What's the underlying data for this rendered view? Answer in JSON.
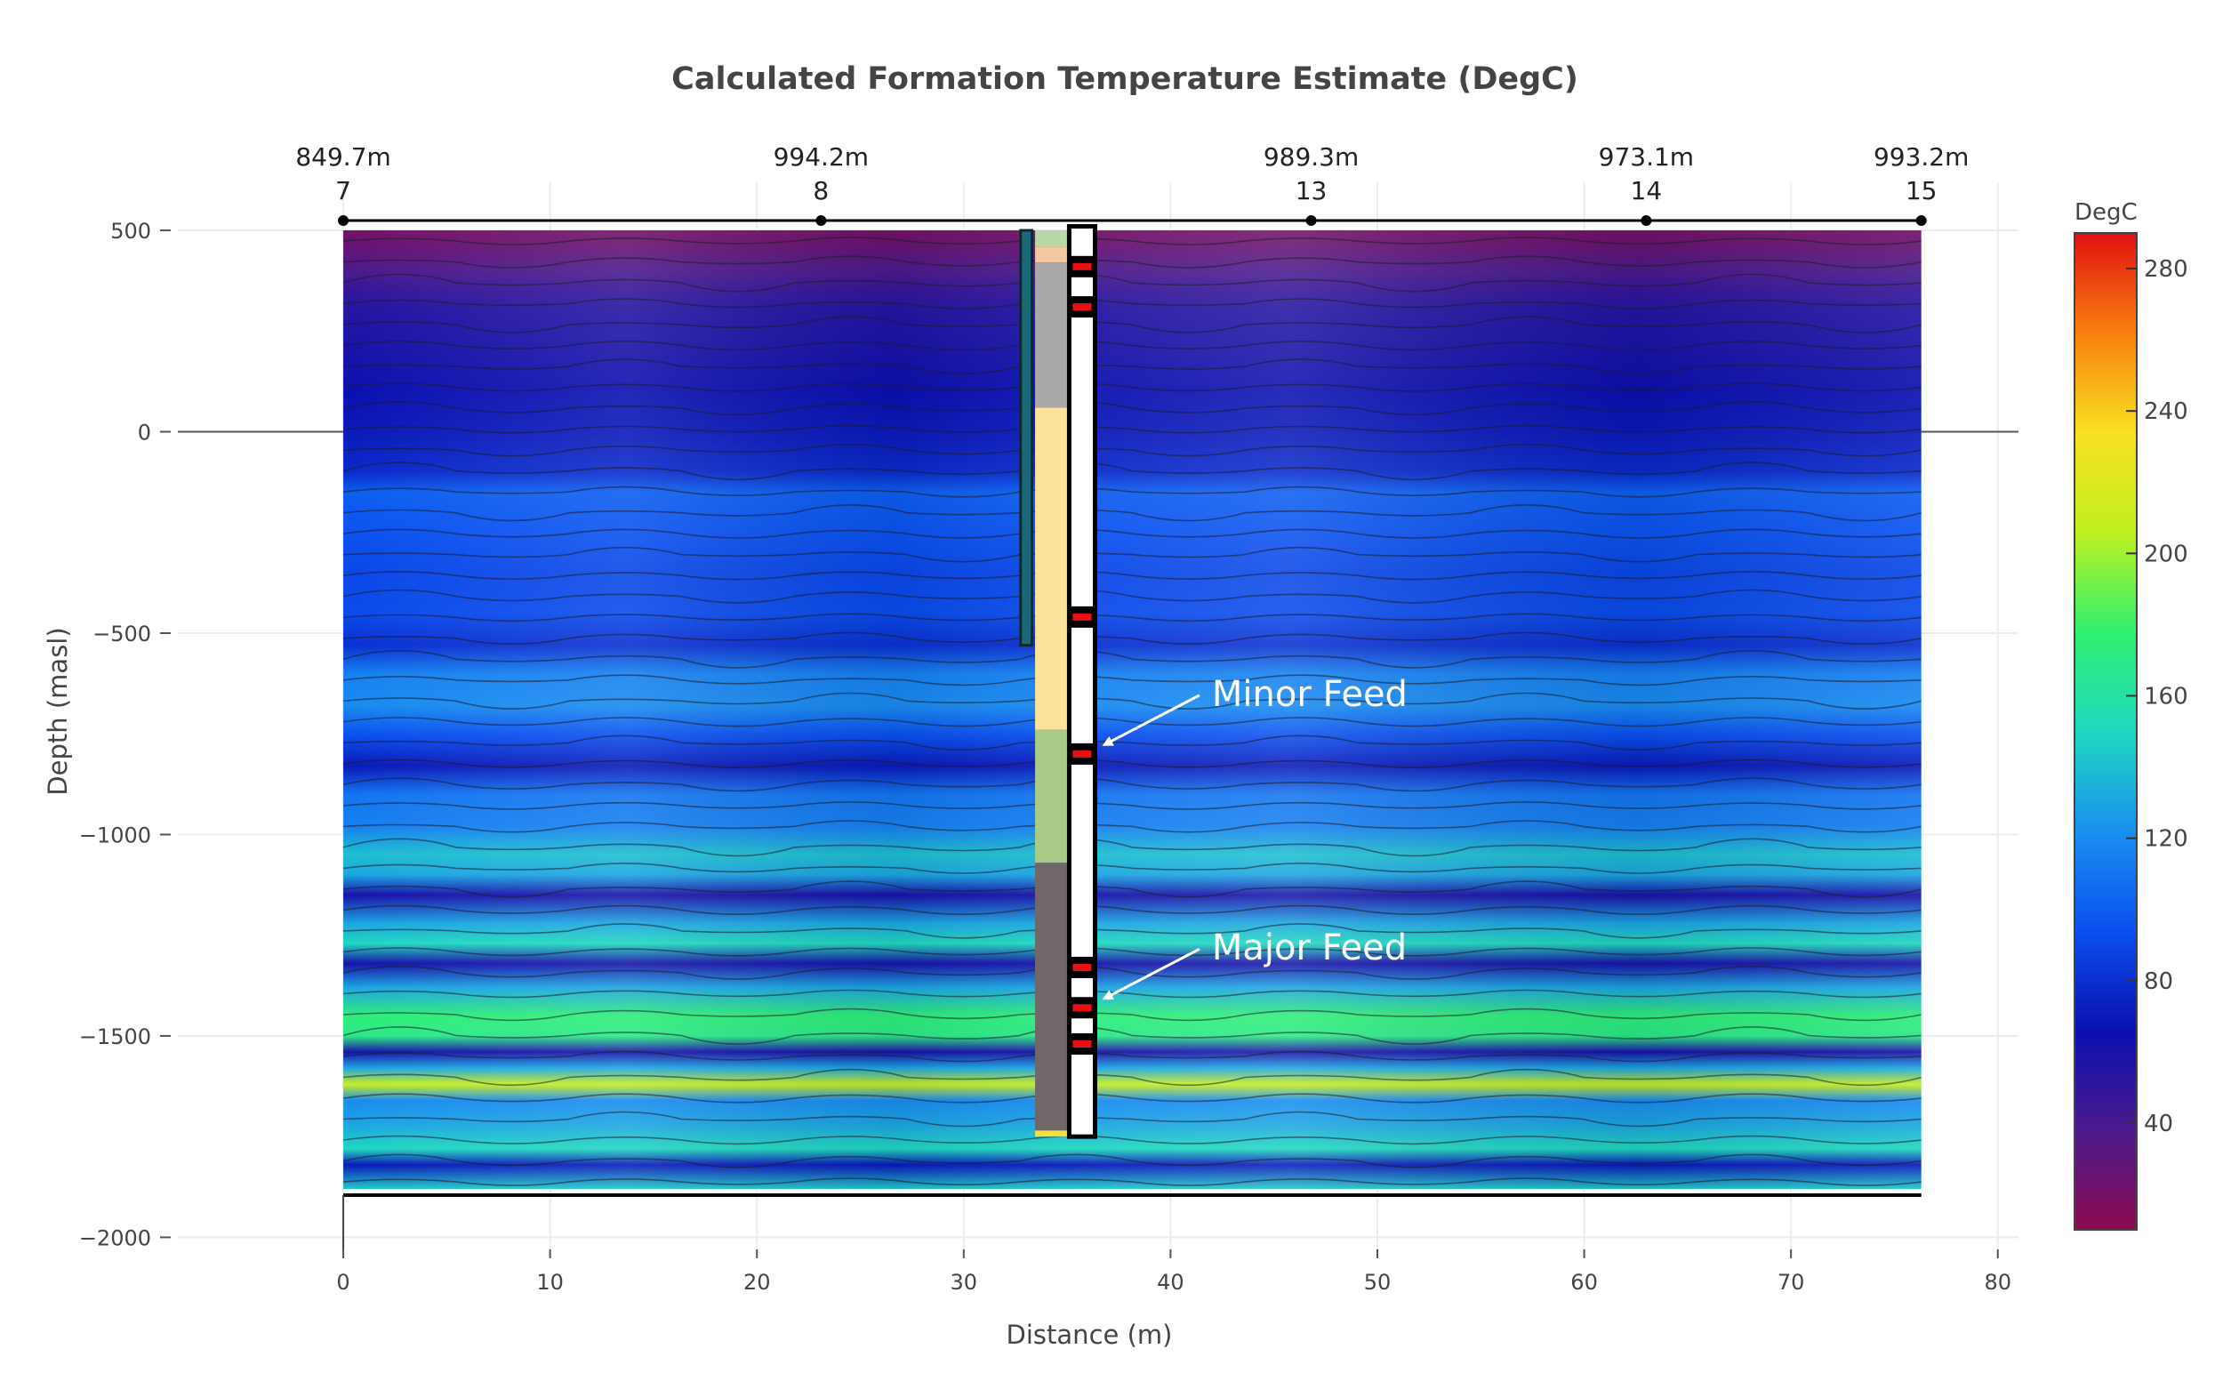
{
  "chart_data": {
    "type": "heatmap",
    "title": "Calculated Formation Temperature Estimate (DegC)",
    "xlabel": "Distance (m)",
    "ylabel": "Depth (masl)",
    "xlim": [
      -8,
      81
    ],
    "ylim": [
      -2030,
      520
    ],
    "x_ticks": [
      0,
      10,
      20,
      30,
      40,
      50,
      60,
      70,
      80
    ],
    "x_tick_labels": [
      "0",
      "10",
      "20",
      "30",
      "40",
      "50",
      "60",
      "70",
      "80"
    ],
    "y_ticks": [
      500,
      0,
      -500,
      -1000,
      -1500,
      -2000
    ],
    "y_tick_labels": [
      "500",
      "0",
      "−500",
      "−1000",
      "−1500",
      "−2000"
    ],
    "grid": true,
    "colorbar": {
      "title": "DegC",
      "min": 10,
      "max": 290,
      "ticks": [
        280,
        240,
        200,
        160,
        120,
        80,
        40
      ],
      "tick_labels": [
        "280",
        "240",
        "200",
        "160",
        "120",
        "80",
        "40"
      ],
      "colors": [
        "#8b0a50",
        "#4b1a8c",
        "#0a10b0",
        "#0a50f0",
        "#1a90f0",
        "#20d8c0",
        "#30f070",
        "#c0f020",
        "#f8e020",
        "#f88010",
        "#e01010"
      ]
    },
    "section": {
      "x_range": [
        0,
        76.3
      ],
      "top_elevation": 500,
      "bottom_elevation": -1880,
      "depth_profile": [
        {
          "elevation": 500,
          "temperature": 20
        },
        {
          "elevation": 440,
          "temperature": 30
        },
        {
          "elevation": 400,
          "temperature": 38
        },
        {
          "elevation": 350,
          "temperature": 48
        },
        {
          "elevation": 300,
          "temperature": 55
        },
        {
          "elevation": 200,
          "temperature": 60
        },
        {
          "elevation": 100,
          "temperature": 66
        },
        {
          "elevation": 0,
          "temperature": 70
        },
        {
          "elevation": -100,
          "temperature": 78
        },
        {
          "elevation": -150,
          "temperature": 100
        },
        {
          "elevation": -250,
          "temperature": 95
        },
        {
          "elevation": -350,
          "temperature": 90
        },
        {
          "elevation": -450,
          "temperature": 92
        },
        {
          "elevation": -530,
          "temperature": 80
        },
        {
          "elevation": -600,
          "temperature": 115
        },
        {
          "elevation": -680,
          "temperature": 120
        },
        {
          "elevation": -750,
          "temperature": 95
        },
        {
          "elevation": -830,
          "temperature": 70
        },
        {
          "elevation": -900,
          "temperature": 110
        },
        {
          "elevation": -980,
          "temperature": 115
        },
        {
          "elevation": -1050,
          "temperature": 140
        },
        {
          "elevation": -1100,
          "temperature": 130
        },
        {
          "elevation": -1150,
          "temperature": 60
        },
        {
          "elevation": -1220,
          "temperature": 130
        },
        {
          "elevation": -1270,
          "temperature": 150
        },
        {
          "elevation": -1320,
          "temperature": 60
        },
        {
          "elevation": -1380,
          "temperature": 130
        },
        {
          "elevation": -1450,
          "temperature": 175
        },
        {
          "elevation": -1500,
          "temperature": 170
        },
        {
          "elevation": -1540,
          "temperature": 60
        },
        {
          "elevation": -1580,
          "temperature": 130
        },
        {
          "elevation": -1620,
          "temperature": 210
        },
        {
          "elevation": -1660,
          "temperature": 120
        },
        {
          "elevation": -1720,
          "temperature": 130
        },
        {
          "elevation": -1780,
          "temperature": 150
        },
        {
          "elevation": -1820,
          "temperature": 70
        },
        {
          "elevation": -1880,
          "temperature": 145
        }
      ]
    },
    "wells": [
      {
        "name": "7",
        "depth_label": "849.7m",
        "x": 0
      },
      {
        "name": "8",
        "depth_label": "994.2m",
        "x": 23.1
      },
      {
        "name": "13",
        "depth_label": "989.3m",
        "x": 46.8
      },
      {
        "name": "14",
        "depth_label": "973.1m",
        "x": 63
      },
      {
        "name": "15",
        "depth_label": "993.2m",
        "x": 76.3
      }
    ],
    "lithology": [
      {
        "top": 500,
        "bottom": 460,
        "color": "#b8d8a8"
      },
      {
        "top": 460,
        "bottom": 420,
        "color": "#f2c8a0"
      },
      {
        "top": 420,
        "bottom": 60,
        "color": "#aaa8a8"
      },
      {
        "top": 60,
        "bottom": -740,
        "color": "#fde29a"
      },
      {
        "top": -740,
        "bottom": -1070,
        "color": "#a8cc88"
      },
      {
        "top": -1070,
        "bottom": -1735,
        "color": "#706868"
      },
      {
        "top": -1735,
        "bottom": -1750,
        "color": "#f0e040"
      }
    ],
    "casing": {
      "top": 500,
      "bottom": -530,
      "color": "#1a6878"
    },
    "wellbore": {
      "top": 510,
      "bottom": -1750
    },
    "feed_zones": [
      410,
      310,
      -460,
      -800,
      -1330,
      -1430,
      -1520
    ],
    "annotations": [
      {
        "text": "Minor Feed",
        "elevation": -800
      },
      {
        "text": "Major Feed",
        "elevation": -1430
      }
    ]
  }
}
